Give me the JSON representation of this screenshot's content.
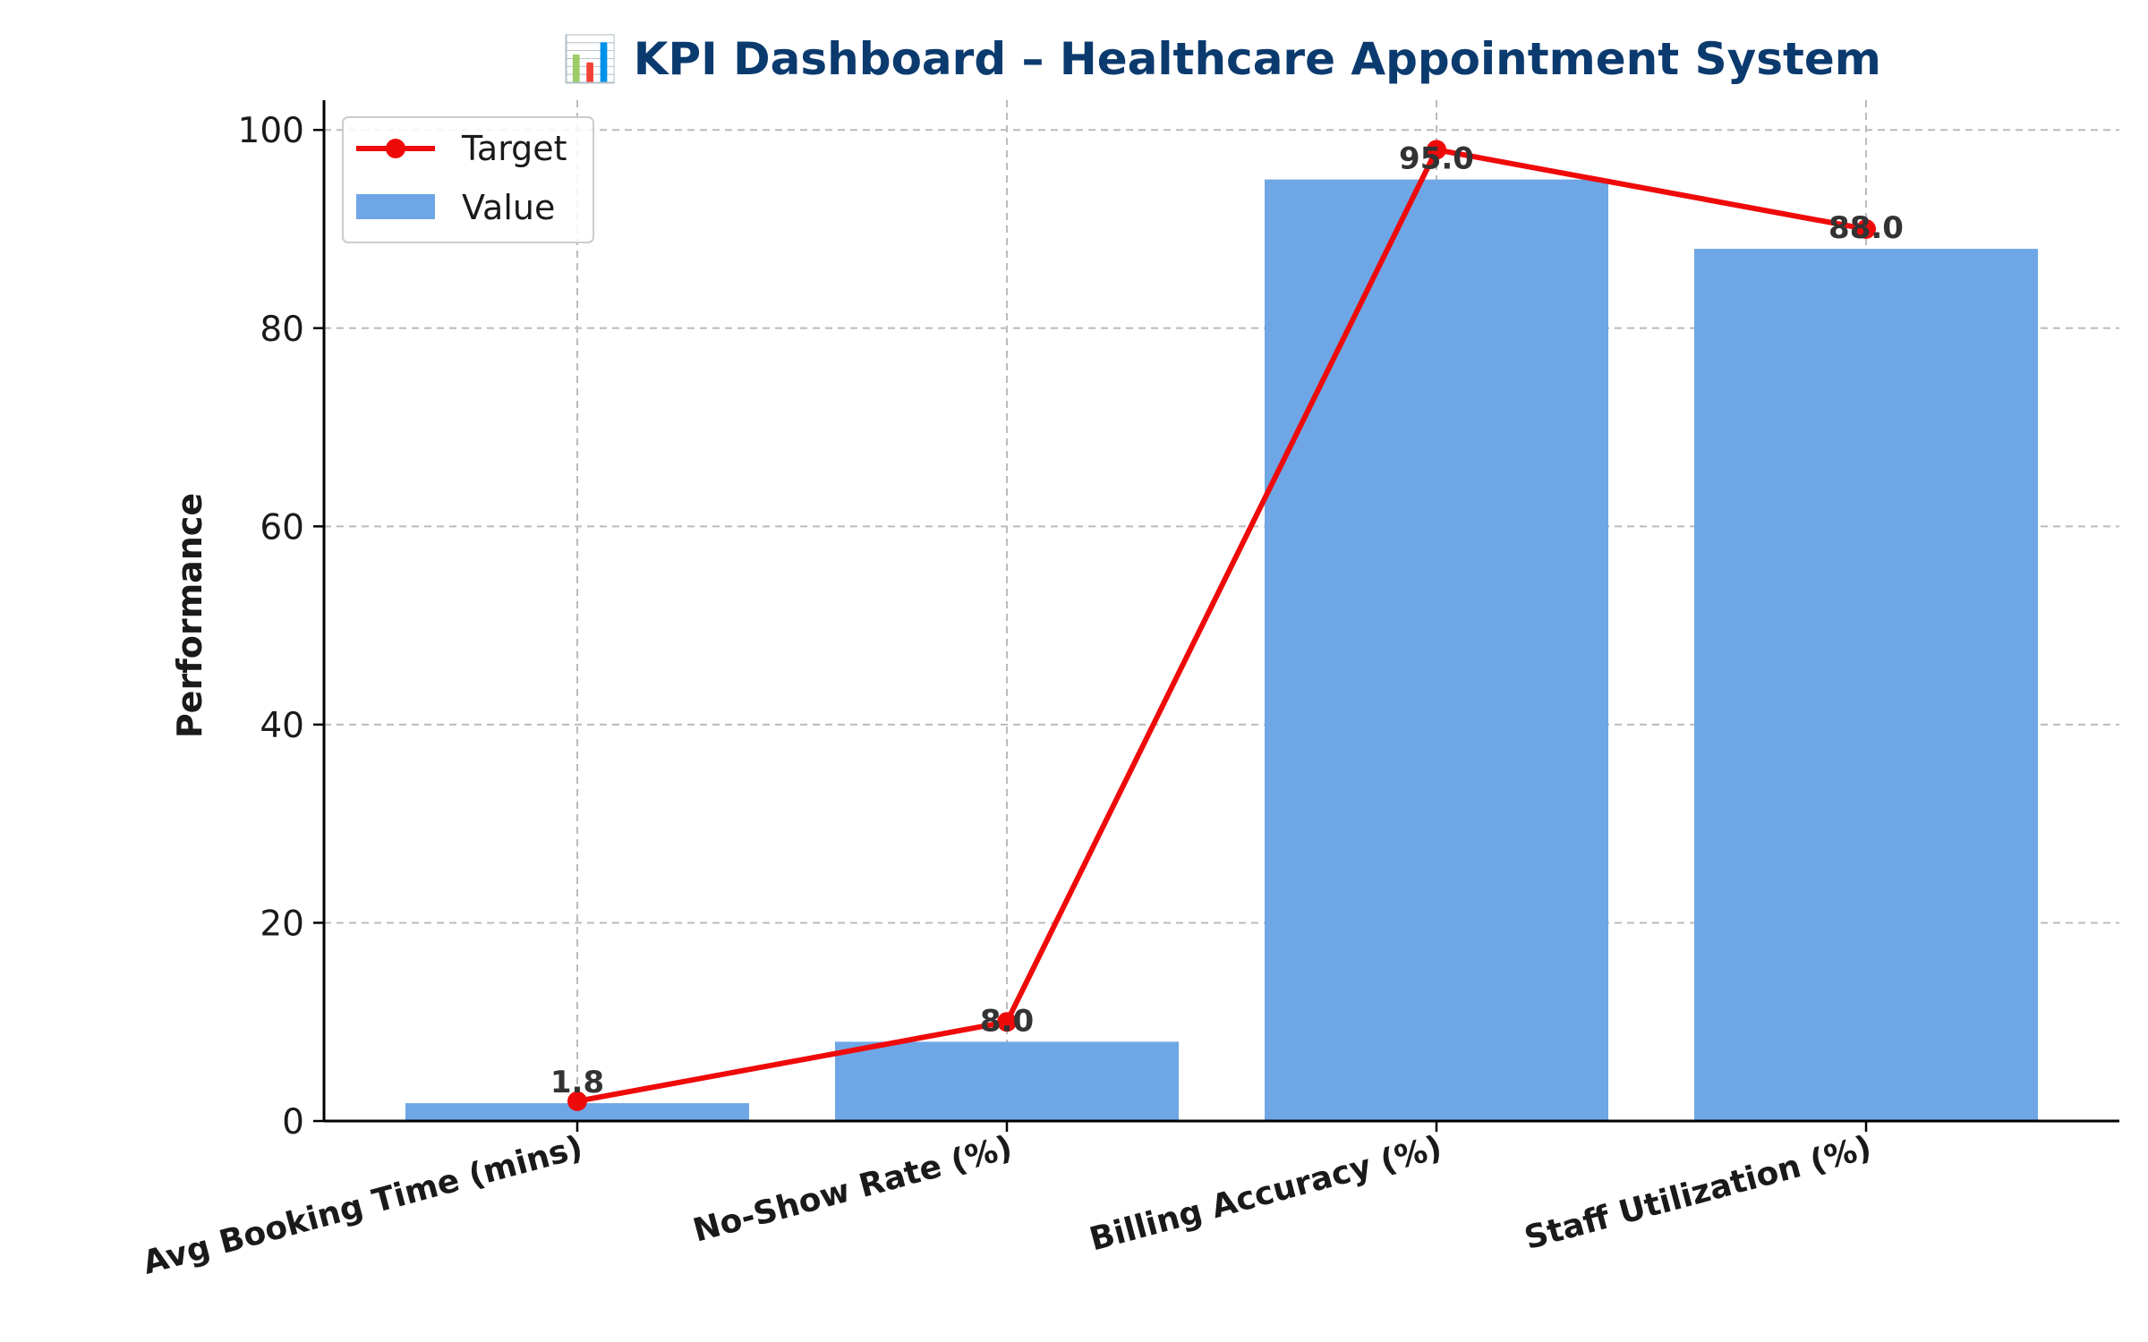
{
  "chart_data": {
    "type": "bar",
    "title": "📊 KPI Dashboard – Healthcare Appointment System",
    "title_color": "#0b3a6e",
    "xlabel": "",
    "ylabel": "Performance",
    "ylim": [
      0,
      103
    ],
    "yticks": [
      0,
      20,
      40,
      60,
      80,
      100
    ],
    "grid": true,
    "legend_position": "top-left",
    "categories": [
      "Avg Booking Time (mins)",
      "No-Show Rate (%)",
      "Billing Accuracy (%)",
      "Staff Utilization (%)"
    ],
    "series": [
      {
        "name": "Value",
        "type": "bar",
        "color": "#6fa6e6",
        "values": [
          1.8,
          8.0,
          95.0,
          88.0
        ],
        "data_labels": [
          "1.8",
          "8.0",
          "95.0",
          "88.0"
        ]
      },
      {
        "name": "Target",
        "type": "line",
        "marker": "circle",
        "color": "#ef0a0a",
        "values": [
          2,
          10,
          98,
          90
        ]
      }
    ]
  }
}
